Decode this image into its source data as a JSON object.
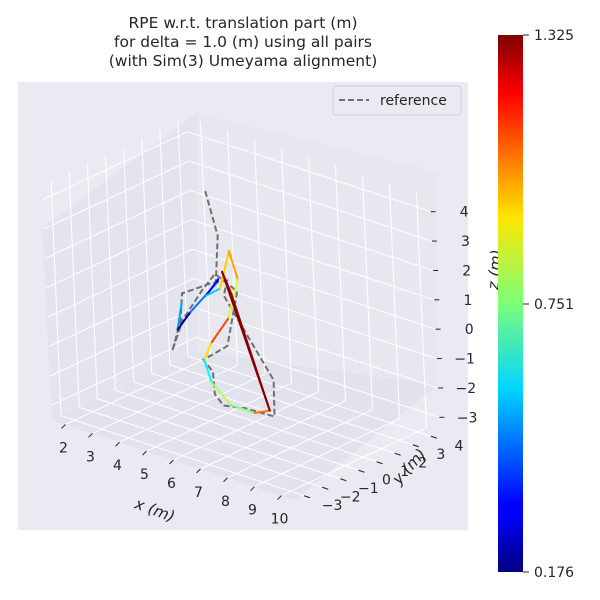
{
  "chart_data": {
    "type": "line",
    "projection": "3d",
    "title": "RPE w.r.t. translation part (m)\nfor delta = 1.0 (m) using all pairs\n(with Sim(3) Umeyama alignment)",
    "xlabel": "x (m)",
    "ylabel": "y (m)",
    "zlabel": "z (m)",
    "x_ticks": [
      "2",
      "3",
      "4",
      "5",
      "6",
      "7",
      "8",
      "9",
      "10"
    ],
    "y_ticks": [
      "−3",
      "−2",
      "−1",
      "0",
      "1",
      "2",
      "3",
      "4"
    ],
    "z_ticks": [
      "−3",
      "−2",
      "−1",
      "0",
      "1",
      "2",
      "3",
      "4"
    ],
    "xlim": [
      1.5,
      10.5
    ],
    "ylim": [
      -3.5,
      4.5
    ],
    "zlim": [
      -3.5,
      4.5
    ],
    "legend": {
      "position": "top-right",
      "entries": [
        "reference"
      ]
    },
    "colorbar": {
      "colormap": "jet",
      "min_label": "0.176",
      "mid_label": "0.751",
      "max_label": "1.325",
      "min": 0.176,
      "max": 1.325
    },
    "reference": {
      "name": "reference",
      "color": "#707070",
      "points": [
        [
          3.8,
          2.0,
          3.4
        ],
        [
          4.2,
          2.0,
          2.0
        ],
        [
          4.4,
          1.5,
          0.6
        ],
        [
          4.6,
          1.0,
          0.8
        ],
        [
          3.6,
          0.8,
          0.2
        ],
        [
          3.2,
          1.2,
          -1.2
        ],
        [
          3.0,
          1.0,
          -2.0
        ],
        [
          3.6,
          0.6,
          -0.8
        ],
        [
          4.4,
          0.8,
          0.6
        ],
        [
          4.8,
          0.9,
          1.2
        ],
        [
          5.4,
          1.2,
          0.7
        ],
        [
          5.5,
          0.4,
          -0.9
        ],
        [
          5.2,
          -0.5,
          -1.2
        ],
        [
          5.4,
          -0.3,
          -1.6
        ],
        [
          6.2,
          -1.4,
          -1.8
        ],
        [
          7.2,
          -2.4,
          -1.6
        ],
        [
          8.2,
          -2.7,
          -1.3
        ],
        [
          9.1,
          -2.4,
          -1.4
        ],
        [
          8.5,
          -1.5,
          -0.6
        ],
        [
          6.0,
          -0.4,
          1.2
        ],
        [
          5.6,
          0.4,
          1.4
        ]
      ]
    },
    "estimate": {
      "colormap": "jet",
      "points": [
        [
          3.5,
          0.9,
          -0.2
        ],
        [
          3.1,
          1.2,
          -1.3
        ],
        [
          3.4,
          1.5,
          -0.7
        ],
        [
          4.4,
          1.6,
          0.6
        ],
        [
          4.7,
          1.2,
          0.9
        ],
        [
          4.5,
          0.8,
          0.4
        ],
        [
          4.9,
          1.0,
          0.7
        ],
        [
          4.6,
          2.0,
          1.6
        ],
        [
          5.3,
          1.4,
          1.0
        ],
        [
          5.5,
          0.5,
          0.0
        ],
        [
          5.3,
          -0.2,
          -0.7
        ],
        [
          5.1,
          -0.3,
          -1.3
        ],
        [
          5.9,
          -1.1,
          -1.6
        ],
        [
          7.2,
          -2.0,
          -1.7
        ],
        [
          8.5,
          -2.6,
          -1.4
        ],
        [
          9.0,
          -2.5,
          -1.2
        ],
        [
          5.8,
          0.3,
          1.0
        ],
        [
          5.0,
          1.0,
          1.3
        ],
        [
          9.0,
          -2.5,
          -1.2
        ]
      ],
      "errors": [
        0.5,
        0.2,
        0.45,
        0.28,
        0.33,
        0.55,
        0.95,
        1.0,
        0.85,
        1.1,
        0.93,
        0.6,
        0.8,
        0.75,
        1.05,
        1.3,
        1.26,
        1.32
      ]
    }
  }
}
